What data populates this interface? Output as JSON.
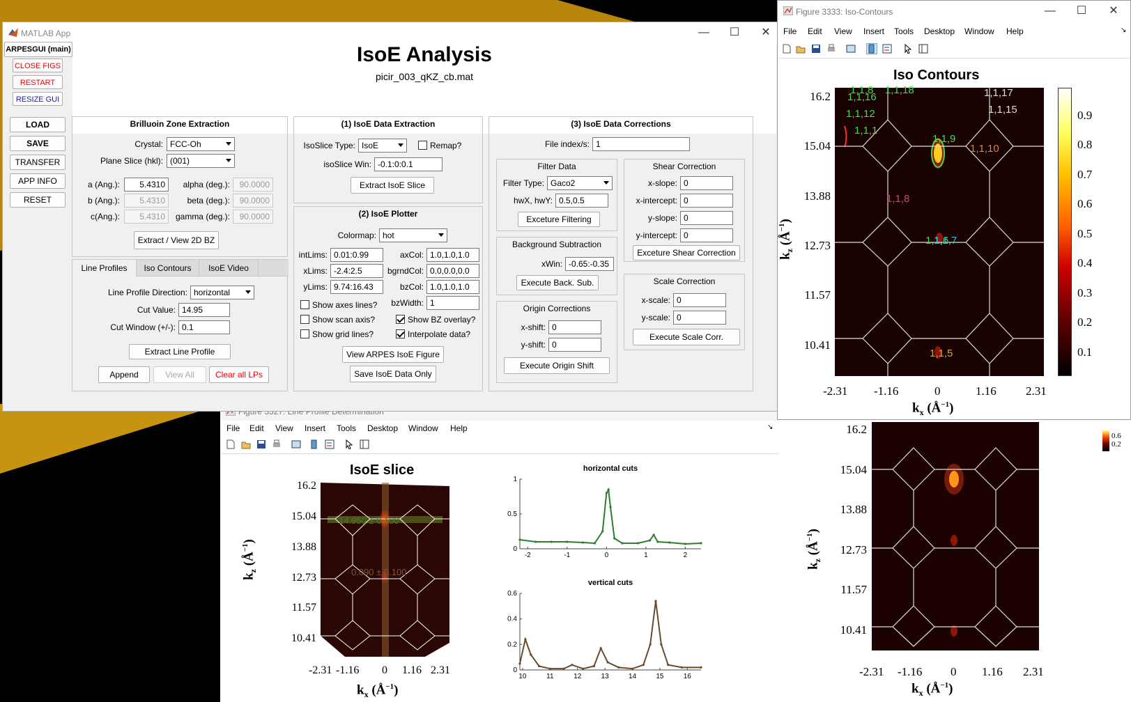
{
  "matlab_app": {
    "title": "MATLAB App",
    "heading": "IsoE Analysis",
    "filename": "picir_003_qKZ_cb.mat",
    "sidebar": {
      "main": "ARPESGUI (main)",
      "close_figs": "CLOSE FIGS",
      "restart": "RESTART",
      "resize_gui": "RESIZE GUI",
      "load": "LOAD",
      "save": "SAVE",
      "transfer": "TRANSFER",
      "app_info": "APP INFO",
      "reset": "RESET"
    },
    "bz": {
      "title": "Brilluoin Zone Extraction",
      "crystal_label": "Crystal:",
      "crystal_value": "FCC-Oh",
      "plane_label": "Plane Slice (hkl):",
      "plane_value": "(001)",
      "a_label": "a (Ang.):",
      "a_value": "5.4310",
      "b_label": "b (Ang.):",
      "b_value": "5.4310",
      "c_label": "c(Ang.):",
      "c_value": "5.4310",
      "alpha_label": "alpha (deg.):",
      "alpha_value": "90.0000",
      "beta_label": "beta (deg.):",
      "beta_value": "90.0000",
      "gamma_label": "gamma (deg.):",
      "gamma_value": "90.0000",
      "extract_btn": "Extract / View 2D BZ"
    },
    "tabs": [
      "Line Profiles",
      "Iso Contours",
      "IsoE Video"
    ],
    "line_profiles": {
      "direction_label": "Line Profile Direction:",
      "direction_value": "horizontal",
      "cut_value_label": "Cut Value:",
      "cut_value": "14.95",
      "cut_window_label": "Cut Window (+/-):",
      "cut_window": "0.1",
      "extract_btn": "Extract Line Profile",
      "append_btn": "Append",
      "view_all_btn": "View All",
      "clear_btn": "Clear all LPs"
    },
    "extraction": {
      "title": "(1) IsoE Data Extraction",
      "type_label": "IsoSlice Type:",
      "type_value": "IsoE",
      "remap_label": "Remap?",
      "win_label": "isoSlice Win:",
      "win_value": "-0.1:0:0.1",
      "extract_btn": "Extract IsoE Slice"
    },
    "plotter": {
      "title": "(2) IsoE Plotter",
      "colormap_label": "Colormap:",
      "colormap_value": "hot",
      "intlims_label": "intLims:",
      "intlims": "0.01:0.99",
      "xlims_label": "xLims:",
      "xlims": "-2.4:2.5",
      "ylims_label": "yLims:",
      "ylims": "9.74:16.43",
      "axcol_label": "axCol:",
      "axcol": "1.0,1.0,1.0",
      "bgrndcol_label": "bgrndCol:",
      "bgrndcol": "0.0,0.0,0.0",
      "bzcol_label": "bzCol:",
      "bzcol": "1.0,1.0,1.0",
      "bzwidth_label": "bzWidth:",
      "bzwidth": "1",
      "show_axes": "Show axes lines?",
      "show_scan": "Show scan axis?",
      "show_grid": "Show grid lines?",
      "show_bz": "Show BZ overlay?",
      "interp": "Interpolate data?",
      "view_btn": "View ARPES IsoE Figure",
      "save_btn": "Save IsoE Data Only"
    },
    "corrections": {
      "title": "(3) IsoE Data Corrections",
      "file_index_label": "File index/s:",
      "file_index": "1",
      "filter_title": "Filter Data",
      "filter_type_label": "Filter Type:",
      "filter_type": "Gaco2",
      "hw_label": "hwX, hwY:",
      "hw_value": "0.5,0.5",
      "filter_btn": "Exceture Filtering",
      "bg_title": "Background Subtraction",
      "xwin_label": "xWin:",
      "xwin_value": "-0.65:-0.35",
      "bg_btn": "Execute Back. Sub.",
      "origin_title": "Origin Corrections",
      "xshift_label": "x-shift:",
      "xshift": "0",
      "yshift_label": "y-shift:",
      "yshift": "0",
      "origin_btn": "Execute Origin Shift",
      "shear_title": "Shear Correction",
      "xslope_label": "x-slope:",
      "xslope": "0",
      "xint_label": "x-intercept:",
      "xint": "0",
      "yslope_label": "y-slope:",
      "yslope": "0",
      "yint_label": "y-intercept:",
      "yint": "0",
      "shear_btn": "Exceture Shear Correction",
      "scale_title": "Scale Correction",
      "xscale_label": "x-scale:",
      "xscale": "0",
      "yscale_label": "y-scale:",
      "yscale": "0",
      "scale_btn": "Execute Scale Corr."
    }
  },
  "menus": [
    "File",
    "Edit",
    "View",
    "Insert",
    "Tools",
    "Desktop",
    "Window",
    "Help"
  ],
  "iso_window": {
    "title": "Figure 3333: Iso-Contours",
    "plot_title": "Iso Contours",
    "colorbar_ticks": [
      "0.9",
      "0.8",
      "0.7",
      "0.6",
      "0.5",
      "0.4",
      "0.3",
      "0.2",
      "0.1"
    ],
    "annotations": [
      {
        "text": "1,1,8",
        "color": "#44dd44"
      },
      {
        "text": "1,1,18",
        "color": "#44dd44"
      },
      {
        "text": "1,1,17",
        "color": "#dddddd"
      },
      {
        "text": "1,1,16",
        "color": "#44dd44"
      },
      {
        "text": "1,1,12",
        "color": "#44dd44"
      },
      {
        "text": "1,1,15",
        "color": "#dddddd"
      },
      {
        "text": "1,1,1",
        "color": "#44dd44"
      },
      {
        "text": "1,1,9",
        "color": "#44dd44"
      },
      {
        "text": "1,1,10",
        "color": "#cc8844"
      },
      {
        "text": "1,1,8",
        "color": "#cc4477"
      },
      {
        "text": "1,1,6",
        "color": "#44dd44"
      },
      {
        "text": "1,1,7",
        "color": "#33bbdd"
      },
      {
        "text": "1,1,5",
        "color": "#ccaa44"
      }
    ]
  },
  "line_profile_window": {
    "title": "Figure 3327: Line Profile Determination",
    "isoe_title": "IsoE slice",
    "annot_top": "14.950 ± 0.100",
    "annot_mid": "0.090 ± 0.100"
  },
  "axes": {
    "xlabel": "k",
    "xlabel_sub": "x",
    "xlabel_unit": "(Å",
    "ylabel": "k",
    "ylabel_sub": "z",
    "ylabel_unit": "(Å",
    "unit_sup": "−1",
    "close_paren": ")",
    "kx_ticks": [
      "-2.31",
      "-1.16",
      "0",
      "1.16",
      "2.31"
    ],
    "kz_ticks": [
      "16.2",
      "15.04",
      "13.88",
      "12.73",
      "11.57",
      "10.41"
    ]
  },
  "chart_data": [
    {
      "type": "line",
      "title": "horizontal cuts",
      "xlim": [
        -2.2,
        2.4
      ],
      "ylim": [
        0,
        1
      ],
      "xticks": [
        "-2",
        "-1",
        "0",
        "1",
        "2"
      ],
      "yticks": [
        "0",
        "0.5",
        "1"
      ],
      "color": "#2e7d2e",
      "x": [
        -2.2,
        -1.8,
        -1.4,
        -1.0,
        -0.6,
        -0.3,
        -0.1,
        0.0,
        0.05,
        0.1,
        0.2,
        0.4,
        0.8,
        1.1,
        1.2,
        1.3,
        1.6,
        2.0,
        2.4
      ],
      "y": [
        0.13,
        0.1,
        0.1,
        0.1,
        0.09,
        0.08,
        0.25,
        0.8,
        0.85,
        0.6,
        0.15,
        0.08,
        0.08,
        0.12,
        0.2,
        0.1,
        0.09,
        0.07,
        0.08
      ]
    },
    {
      "type": "line",
      "title": "vertical cuts",
      "xlim": [
        9.9,
        16.5
      ],
      "ylim": [
        0,
        0.6
      ],
      "xticks": [
        "10",
        "11",
        "12",
        "13",
        "14",
        "15",
        "16"
      ],
      "yticks": [
        "0",
        "0.2",
        "0.4",
        "0.6"
      ],
      "color": "#6b4a2a",
      "x": [
        9.9,
        10.1,
        10.3,
        10.6,
        11.0,
        11.5,
        11.8,
        12.2,
        12.6,
        12.85,
        13.1,
        13.5,
        14.0,
        14.4,
        14.65,
        14.85,
        15.05,
        15.3,
        15.8,
        16.5
      ],
      "y": [
        0.05,
        0.24,
        0.12,
        0.03,
        0.01,
        0.01,
        0.04,
        0.01,
        0.03,
        0.17,
        0.06,
        0.02,
        0.01,
        0.04,
        0.2,
        0.54,
        0.2,
        0.04,
        0.02,
        0.02
      ]
    }
  ],
  "right_colorbar_ticks": [
    "0.6",
    "0.2"
  ]
}
